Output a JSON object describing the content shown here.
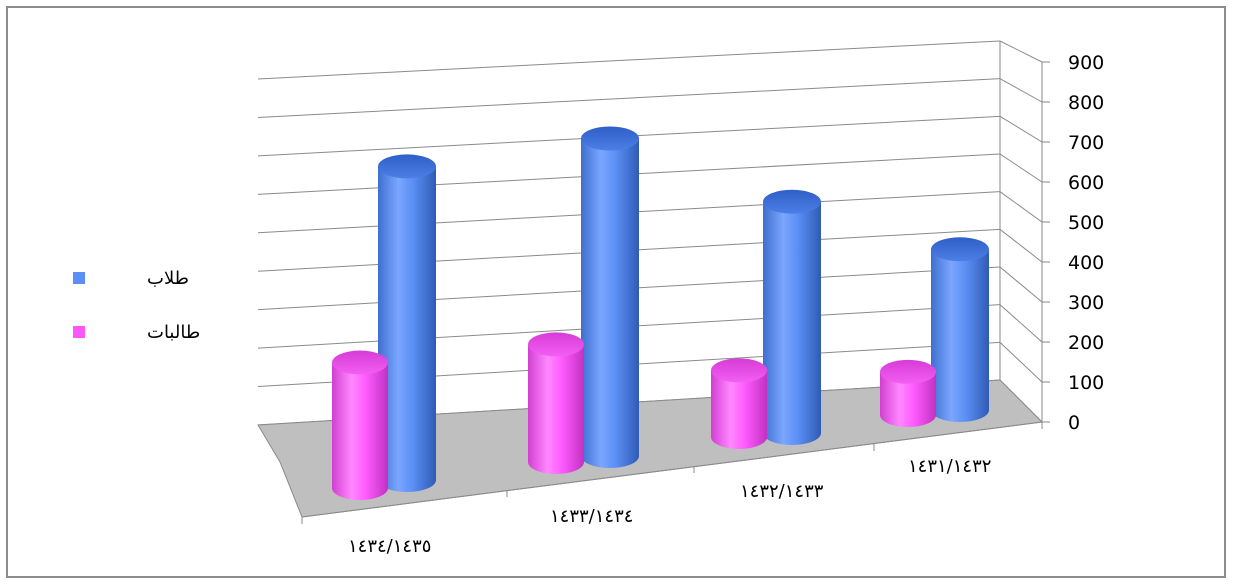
{
  "chart_data": {
    "type": "bar",
    "style": "3d-cylinder",
    "categories": [
      "١٤٣٤/١٤٣٥",
      "١٤٣٣/١٤٣٤",
      "١٤٣٢/١٤٣٣",
      "١٤٣١/١٤٣٢"
    ],
    "series": [
      {
        "name": "طالبات",
        "color": "#ff55ff",
        "values": [
          320,
          300,
          170,
          110
        ]
      },
      {
        "name": "طلاب",
        "color": "#5b8ff5",
        "values": [
          800,
          810,
          590,
          410
        ]
      }
    ],
    "y_ticks": [
      "0",
      "100",
      "200",
      "300",
      "400",
      "500",
      "600",
      "700",
      "800",
      "900"
    ],
    "ylim": [
      0,
      900
    ],
    "y_axis_side": "right",
    "grid": true,
    "legend_position": "left"
  }
}
